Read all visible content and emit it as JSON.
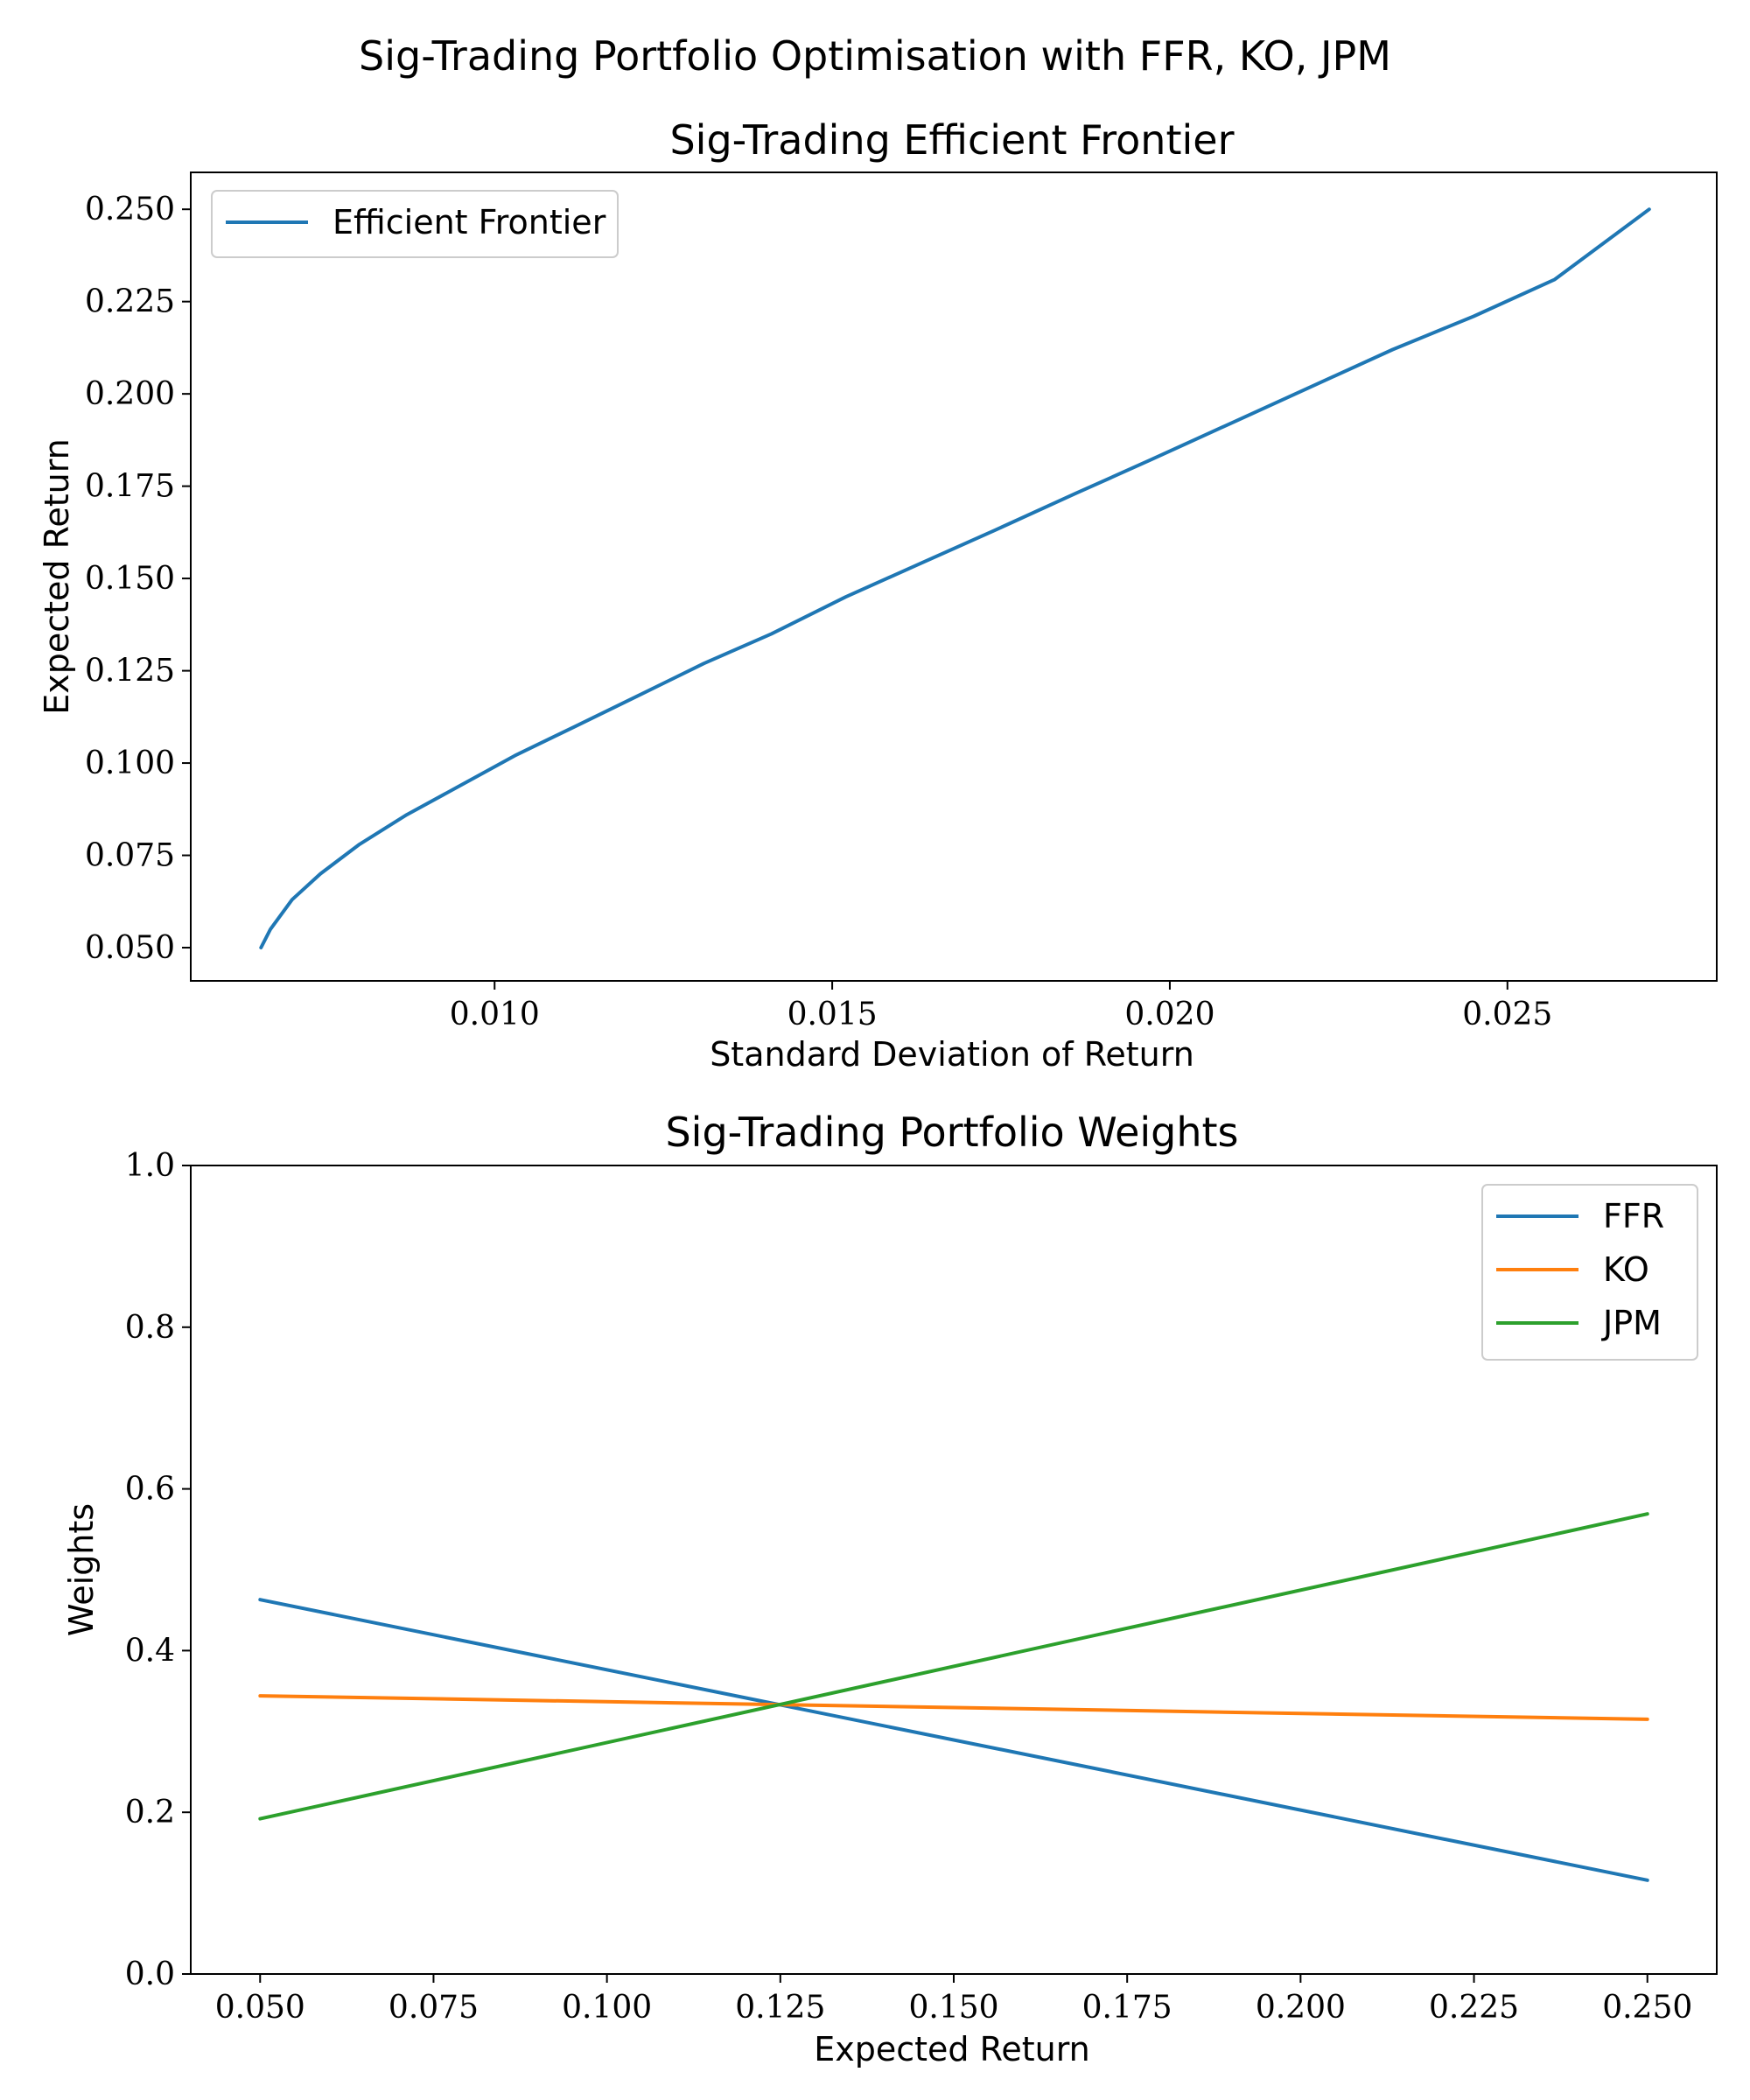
{
  "figure": {
    "suptitle": "Sig-Trading Portfolio Optimisation with FFR, KO, JPM"
  },
  "chart_data": [
    {
      "type": "line",
      "title": "Sig-Trading Efficient Frontier",
      "xlabel": "Standard Deviation of Return",
      "ylabel": "Expected Return",
      "xlim": [
        0.0055,
        0.0281
      ],
      "ylim": [
        0.041,
        0.26
      ],
      "xticks": [
        0.01,
        0.015,
        0.02,
        0.025
      ],
      "xtick_labels": [
        "0.010",
        "0.015",
        "0.020",
        "0.025"
      ],
      "yticks": [
        0.05,
        0.075,
        0.1,
        0.125,
        0.15,
        0.175,
        0.2,
        0.225,
        0.25
      ],
      "ytick_labels": [
        "0.050",
        "0.075",
        "0.100",
        "0.125",
        "0.150",
        "0.175",
        "0.200",
        "0.225",
        "0.250"
      ],
      "grid": false,
      "legend": "top-left",
      "series": [
        {
          "name": "Efficient Frontier",
          "color": "#1f77b4",
          "x": [
            0.00654,
            0.00668,
            0.007,
            0.00742,
            0.008,
            0.0087,
            0.0095,
            0.0103,
            0.0112,
            0.0121,
            0.0131,
            0.0141,
            0.0152,
            0.0163,
            0.0174,
            0.0186,
            0.0197,
            0.0209,
            0.0221,
            0.0233,
            0.0245,
            0.0257,
            0.0271
          ],
          "y": [
            0.05,
            0.055,
            0.063,
            0.07,
            0.078,
            0.086,
            0.094,
            0.102,
            0.11,
            0.118,
            0.127,
            0.135,
            0.145,
            0.154,
            0.163,
            0.173,
            0.182,
            0.192,
            0.202,
            0.212,
            0.221,
            0.231,
            0.25
          ]
        }
      ]
    },
    {
      "type": "line",
      "title": "Sig-Trading Portfolio Weights",
      "xlabel": "Expected Return",
      "ylabel": "Weights",
      "xlim": [
        0.04,
        0.26
      ],
      "ylim": [
        0.0,
        1.0
      ],
      "xticks": [
        0.05,
        0.075,
        0.1,
        0.125,
        0.15,
        0.175,
        0.2,
        0.225,
        0.25
      ],
      "xtick_labels": [
        "0.050",
        "0.075",
        "0.100",
        "0.125",
        "0.150",
        "0.175",
        "0.200",
        "0.225",
        "0.250"
      ],
      "yticks": [
        0.0,
        0.2,
        0.4,
        0.6,
        0.8,
        1.0
      ],
      "ytick_labels": [
        "0.0",
        "0.2",
        "0.4",
        "0.6",
        "0.8",
        "1.0"
      ],
      "grid": false,
      "legend": "top-right",
      "series": [
        {
          "name": "FFR",
          "color": "#1f77b4",
          "x": [
            0.05,
            0.25
          ],
          "y": [
            0.463,
            0.116
          ]
        },
        {
          "name": "KO",
          "color": "#ff7f0e",
          "x": [
            0.05,
            0.25
          ],
          "y": [
            0.344,
            0.315
          ]
        },
        {
          "name": "JPM",
          "color": "#2ca02c",
          "x": [
            0.05,
            0.25
          ],
          "y": [
            0.192,
            0.569
          ]
        }
      ]
    }
  ]
}
